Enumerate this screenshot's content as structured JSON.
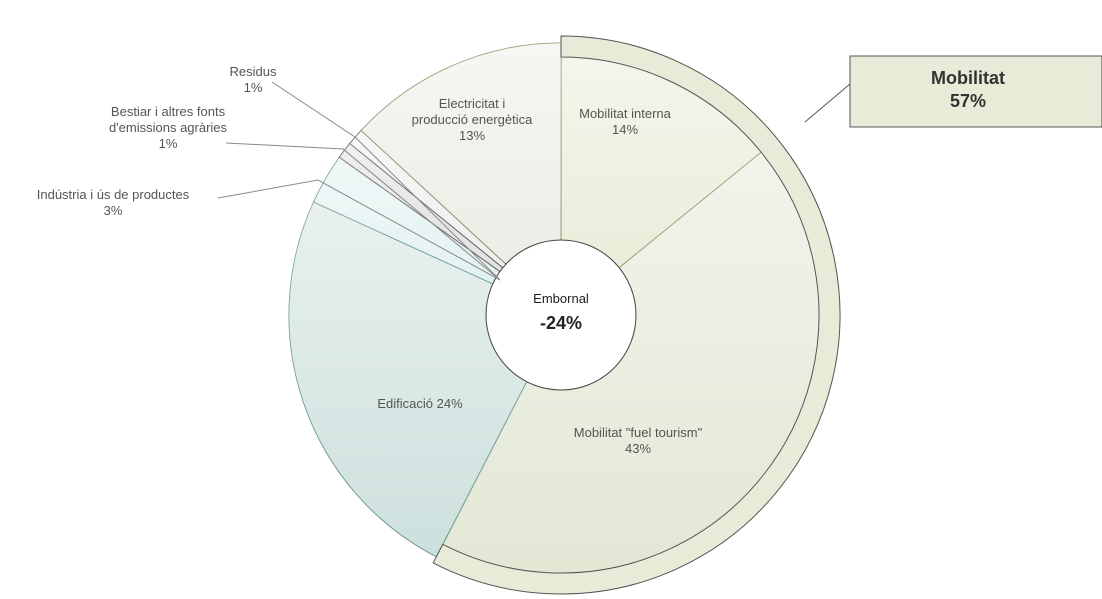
{
  "chart_data": {
    "type": "pie",
    "slices": [
      {
        "id": "mobilitat-interna",
        "label_lines": [
          "Mobilitat interna",
          "14%"
        ],
        "value": 14,
        "color": "#e9ebd6",
        "stroke": "#8a8f5c"
      },
      {
        "id": "mobilitat-fuel-tourism",
        "label_lines": [
          "Mobilitat \"fuel tourism\"",
          "43%"
        ],
        "value": 43,
        "color": "#e2e7d4",
        "stroke": "#8a8f5c"
      },
      {
        "id": "edificacio",
        "label_lines": [
          "Edificació 24%"
        ],
        "value": 24,
        "color": "#cde0dd",
        "stroke": "#6a9a90"
      },
      {
        "id": "industria",
        "label_lines": [
          "Indústria i ús de productes",
          "3%"
        ],
        "value": 3,
        "color": "#dff0ef",
        "stroke": "#6a9a90"
      },
      {
        "id": "bestiar",
        "label_lines": [
          "Bestiar i altres fonts",
          "d'emissions agràries",
          "1%"
        ],
        "value": 1,
        "color": "#dcdcdc",
        "stroke": "#555555"
      },
      {
        "id": "residus",
        "label_lines": [
          "Residus",
          "1%"
        ],
        "value": 1,
        "color": "#ececec",
        "stroke": "#555555"
      },
      {
        "id": "electricitat",
        "label_lines": [
          "Electricitat i",
          "producció energètica",
          "13%"
        ],
        "value": 13,
        "color": "#ebebe4",
        "stroke": "#8a8f5c"
      }
    ],
    "center": {
      "name": "Embornal",
      "value": "-24%"
    },
    "group_callout": {
      "lines": [
        "Mobilitat",
        "57%"
      ],
      "color": "#e9ebd8",
      "members": [
        "mobilitat-interna",
        "mobilitat-fuel-tourism"
      ]
    }
  }
}
